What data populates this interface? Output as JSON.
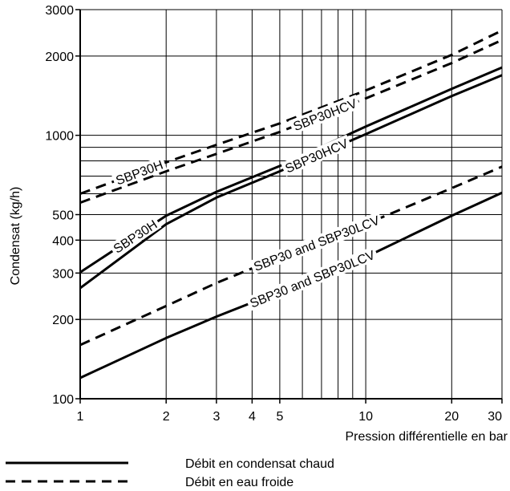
{
  "chart_data": {
    "type": "line",
    "xlabel": "Pression différentielle en bar",
    "ylabel": "Condensat (kg/h)",
    "x_scale": "log",
    "y_scale": "log",
    "xlim": [
      1,
      30
    ],
    "ylim": [
      100,
      3000
    ],
    "x_ticks": [
      {
        "value": 1,
        "label": "1"
      },
      {
        "value": 2,
        "label": "2"
      },
      {
        "value": 3,
        "label": "3"
      },
      {
        "value": 4,
        "label": "4"
      },
      {
        "value": 5,
        "label": "5"
      },
      {
        "value": 10,
        "label": "10"
      },
      {
        "value": 20,
        "label": "20"
      },
      {
        "value": 30,
        "label": "30"
      }
    ],
    "y_ticks": [
      {
        "value": 100,
        "label": "100"
      },
      {
        "value": 200,
        "label": "200"
      },
      {
        "value": 300,
        "label": "300"
      },
      {
        "value": 400,
        "label": "400"
      },
      {
        "value": 500,
        "label": "500"
      },
      {
        "value": 1000,
        "label": "1000"
      },
      {
        "value": 2000,
        "label": "2000"
      },
      {
        "value": 3000,
        "label": "3000"
      }
    ],
    "grid": true,
    "series": [
      {
        "label": "SBP30H",
        "style": "dashed",
        "x": [
          1,
          2,
          3,
          5,
          10,
          20,
          30
        ],
        "y": [
          600,
          790,
          920,
          1110,
          1480,
          2020,
          2500
        ]
      },
      {
        "label": "SBP30HCV",
        "style": "dashed",
        "x": [
          1,
          2,
          3,
          5,
          10,
          20,
          30
        ],
        "y": [
          555,
          730,
          850,
          1030,
          1380,
          1880,
          2300
        ]
      },
      {
        "label": "SBP30H",
        "style": "solid",
        "x": [
          1,
          2,
          3,
          5,
          10,
          20,
          30
        ],
        "y": [
          302,
          495,
          610,
          765,
          1080,
          1500,
          1810
        ]
      },
      {
        "label": "SBP30HCV",
        "style": "solid",
        "x": [
          1,
          2,
          3,
          5,
          10,
          20,
          30
        ],
        "y": [
          263,
          460,
          580,
          730,
          1010,
          1410,
          1690
        ]
      },
      {
        "label": "SBP30 and SBP30LCV",
        "style": "dashed",
        "x": [
          1,
          2,
          3,
          5,
          10,
          20,
          30
        ],
        "y": [
          160,
          225,
          275,
          345,
          460,
          630,
          760
        ]
      },
      {
        "label": "SBP30 and SBP30LCV",
        "style": "solid",
        "x": [
          1,
          2,
          3,
          5,
          10,
          20,
          30
        ],
        "y": [
          120,
          170,
          205,
          255,
          345,
          495,
          605
        ]
      }
    ],
    "legend": {
      "placement": "bottom-left",
      "items": [
        {
          "label": "Débit en condensat chaud",
          "style": "solid"
        },
        {
          "label": "Débit en eau froide",
          "style": "dashed"
        }
      ]
    }
  }
}
